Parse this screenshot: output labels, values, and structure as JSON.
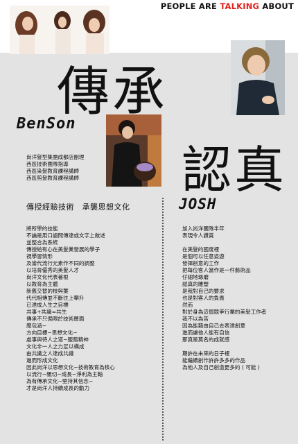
{
  "header": {
    "title_part1": "PEOPLE ARE ",
    "title_highlight": "TALKING",
    "title_part2": " ABOUT"
  },
  "benson": {
    "title": "傳承",
    "name": "BenSon",
    "roles": [
      "尚洋髮型集團成都店副理",
      "西區技術團隊指導",
      "西區染髮教育課程講師",
      "西區剪髮教育課程講師"
    ],
    "heading": "傳授經驗技術　承襲思想文化",
    "lines": [
      "將所學的技能",
      "不論是用口語問傳達或文字上敘述",
      "並整合為系統",
      "傳授給有心在美髮業發展的學子",
      "視學習情形",
      "及當代流行元素作不同的調整",
      "以培育優秀的美髮人才",
      "尚洋文化代表著根",
      "以教育為主體",
      "新舊交替的枝與葉",
      "代代相傳並不斷往上攀升",
      "已達成人生之目標",
      "共事+共識=共生",
      "傳承不只侷限於技術層面",
      "應包涵~",
      "方向目標~思想文化~",
      "處事與待人之道~服務精神",
      "文化非一人之力足以構成",
      "由共識之人達成共識",
      "進而形成文化",
      "因此尚洋以思想文化~技術教育為核心",
      "以流行~親切~成長~淨利為主軸",
      "為有傳承文化~堅持其信念~",
      "才是尚洋人持續成長的動力"
    ]
  },
  "josh": {
    "title": "認真",
    "name": "JOSH",
    "lines": [
      "加入尚洋團隊半年",
      "表現令人讚賞",
      "",
      "在美髮的國度裡",
      "是個可以任意姿遊",
      "發揮創意的工作",
      "把每位客人當作是一件藝術品",
      "仔細地琢磨",
      "認真的雕塑",
      "是我對自己的要求",
      "也是對客人的負責",
      "然而",
      "對於身為這個競爭行業的美髮工作者",
      "我不以為苦",
      "因為能藉由自己去表達創意",
      "進而讓他人能有自信",
      "那真是莫名的成就感",
      "",
      "期許在未來的日子裡",
      "能繼續創作許許多多的作品",
      "為他人及自己創造更多的 ( 可能 )"
    ]
  },
  "colors": {
    "accent": "#e0221c",
    "panel": "#e3e3e3"
  }
}
